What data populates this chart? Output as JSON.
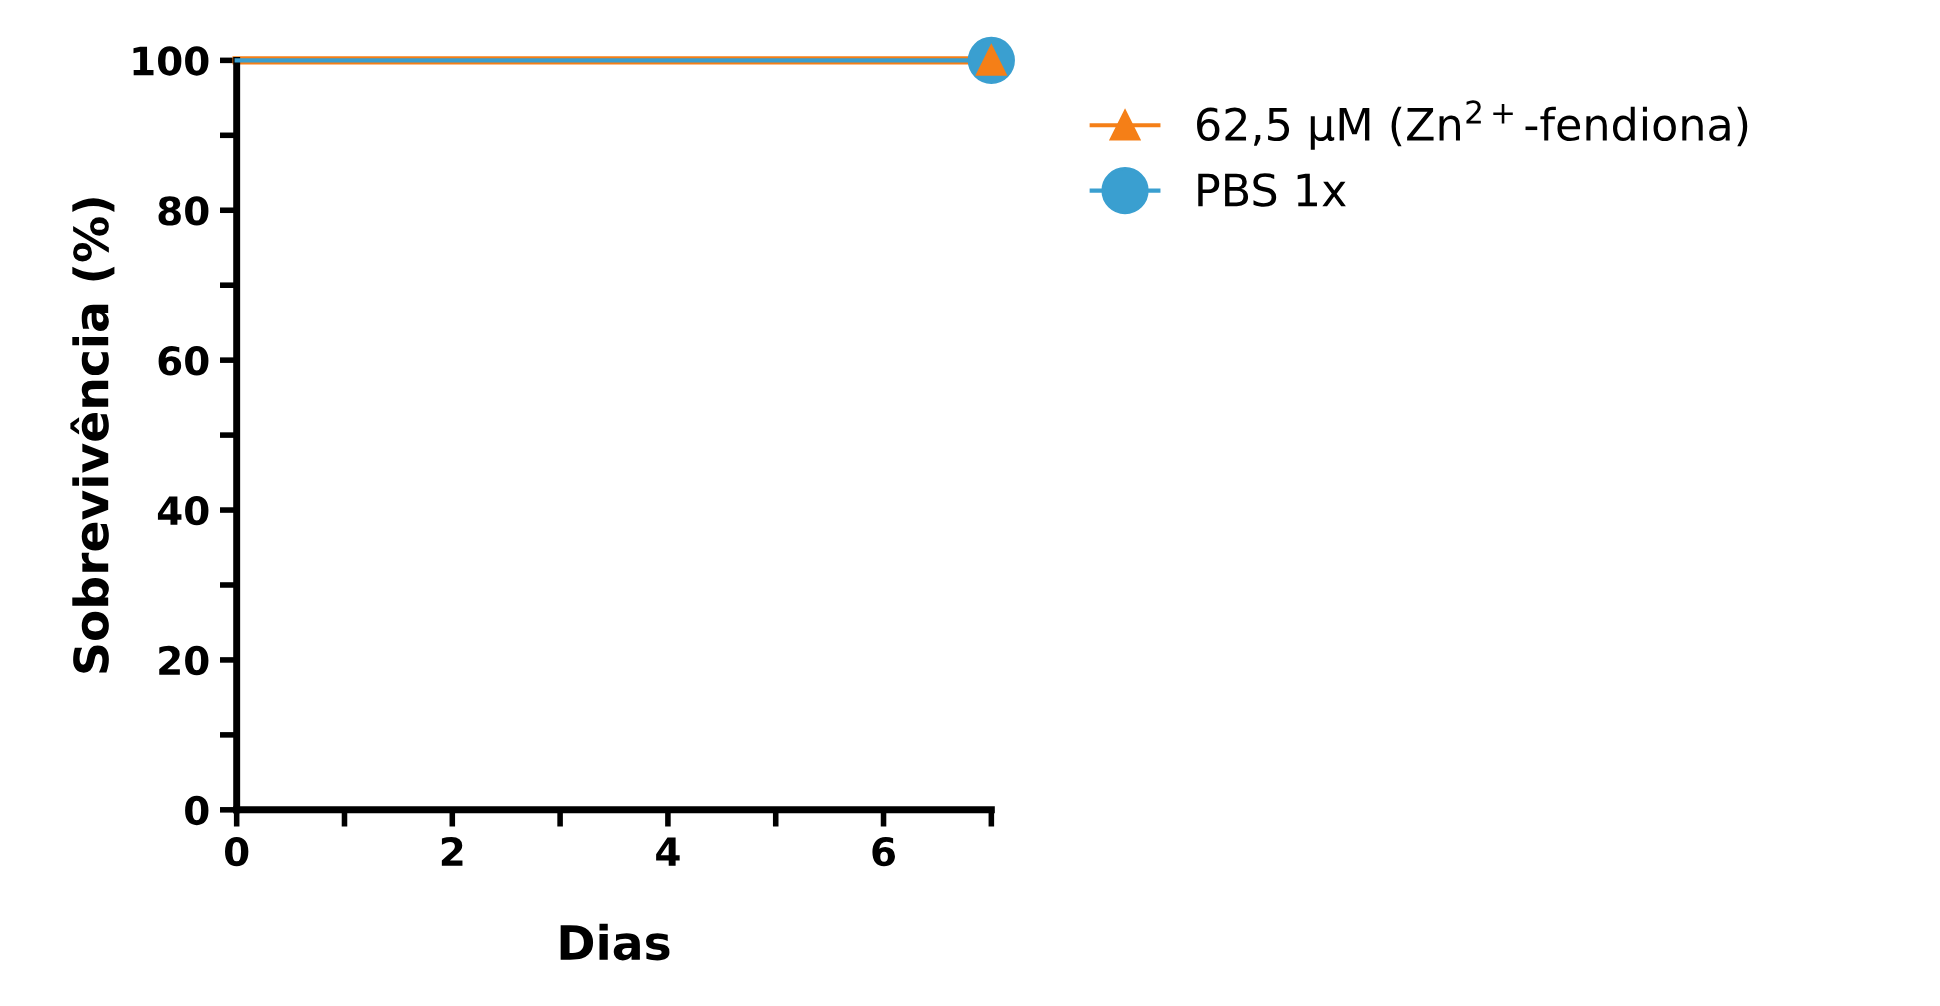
{
  "chart_data": {
    "type": "step",
    "xlabel": "Dias",
    "ylabel": "Sobrevivência (%)",
    "xlim": [
      0,
      7
    ],
    "ylim": [
      0,
      100
    ],
    "xticks": [
      0,
      {
        "value": 1,
        "label": null
      },
      2,
      {
        "value": 3,
        "label": null
      },
      4,
      {
        "value": 5,
        "label": null
      },
      6,
      {
        "value": 7,
        "label": null
      }
    ],
    "yticks": [
      0,
      {
        "value": 10,
        "label": null
      },
      20,
      {
        "value": 30,
        "label": null
      },
      40,
      {
        "value": 50,
        "label": null
      },
      60,
      {
        "value": 70,
        "label": null
      },
      80,
      {
        "value": 90,
        "label": null
      },
      100
    ],
    "legend": "right",
    "grid": false,
    "x": [
      0,
      7
    ],
    "series": [
      {
        "name": "62,5 µM (Zn$^{2+}$-fendiona)",
        "color": "#f57f17",
        "values": [
          100,
          100
        ],
        "marker": "triangle"
      },
      {
        "name": "PBS 1x",
        "color": "#3a9fd0",
        "values": [
          100,
          100
        ],
        "marker": "circle"
      }
    ]
  }
}
